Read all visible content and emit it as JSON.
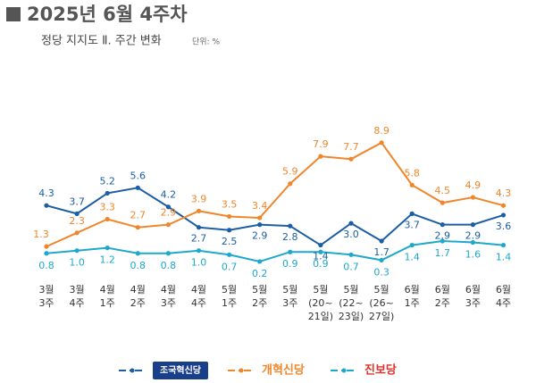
{
  "chart_data": {
    "type": "line",
    "title": "2025년 6월 4주차",
    "subtitle": "정당 지지도 Ⅱ. 주간 변화",
    "unit": "단위: %",
    "categories": [
      [
        "3월",
        "3주"
      ],
      [
        "3월",
        "4주"
      ],
      [
        "4월",
        "1주"
      ],
      [
        "4월",
        "2주"
      ],
      [
        "4월",
        "3주"
      ],
      [
        "4월",
        "4주"
      ],
      [
        "5월",
        "1주"
      ],
      [
        "5월",
        "2주"
      ],
      [
        "5월",
        "3주"
      ],
      [
        "5월",
        "(20~",
        "21일)"
      ],
      [
        "5월",
        "(22~",
        "23일)"
      ],
      [
        "5월",
        "(26~",
        "27일)"
      ],
      [
        "6월",
        "1주"
      ],
      [
        "6월",
        "2주"
      ],
      [
        "6월",
        "3주"
      ],
      [
        "6월",
        "4주"
      ]
    ],
    "series": [
      {
        "name": "조국혁신당",
        "color": "#1b5ea6",
        "values": [
          4.3,
          3.7,
          5.2,
          5.6,
          4.2,
          2.7,
          2.5,
          2.9,
          2.8,
          1.4,
          3.0,
          1.7,
          3.7,
          2.9,
          2.9,
          3.6
        ],
        "value_labels": [
          "4.3",
          "3.7",
          "5.2",
          "5.6",
          "4.2",
          "2.7",
          "2.5",
          "2.9",
          "2.8",
          "1.4",
          "3.0",
          "1.7",
          "3.7",
          "2.9",
          "2.9",
          "3.6"
        ]
      },
      {
        "name": "개혁신당",
        "color": "#f0862a",
        "values": [
          1.3,
          2.3,
          3.3,
          2.7,
          2.9,
          3.9,
          3.5,
          3.4,
          5.9,
          7.9,
          7.7,
          8.9,
          5.8,
          4.5,
          4.9,
          4.3
        ],
        "value_labels": [
          "1.3",
          "2.3",
          "3.3",
          "2.7",
          "2.9",
          "3.9",
          "3.5",
          "3.4",
          "5.9",
          "7.9",
          "7.7",
          "8.9",
          "5.8",
          "4.5",
          "4.9",
          "4.3"
        ]
      },
      {
        "name": "진보당",
        "color": "#1ea8cc",
        "values": [
          0.8,
          1.0,
          1.2,
          0.8,
          0.8,
          1.0,
          0.7,
          0.2,
          0.9,
          0.9,
          0.7,
          0.3,
          1.4,
          1.7,
          1.6,
          1.4
        ],
        "value_labels": [
          "0.8",
          "1.0",
          "1.2",
          "0.8",
          "0.8",
          "1.0",
          "0.7",
          "0.2",
          "0.9",
          "0.9",
          "0.7",
          "0.3",
          "1.4",
          "1.7",
          "1.6",
          "1.4"
        ]
      }
    ]
  }
}
